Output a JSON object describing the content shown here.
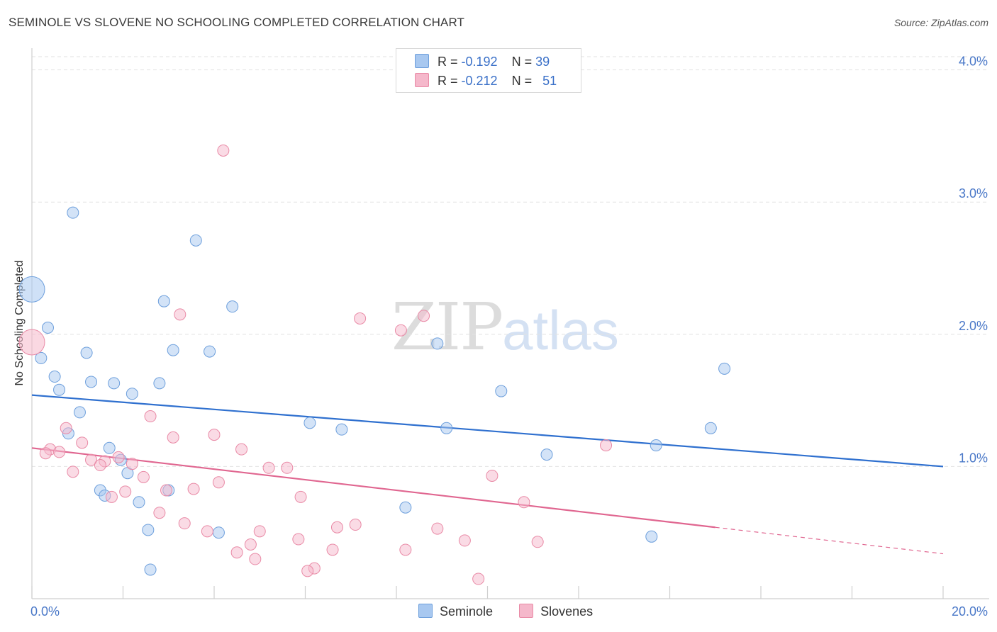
{
  "header": {
    "title": "SEMINOLE VS SLOVENE NO SCHOOLING COMPLETED CORRELATION CHART",
    "source": "Source: ZipAtlas.com"
  },
  "watermark": {
    "zip": "ZIP",
    "atlas": "atlas"
  },
  "legend": {
    "rows": [
      {
        "r_label": "R = ",
        "r_value": "-0.192",
        "n_label": "N = ",
        "n_value": "39",
        "color": "#a8c8f0"
      },
      {
        "r_label": "R = ",
        "r_value": "-0.212",
        "n_label": "N = ",
        "n_value": "51",
        "color": "#f5b8cb"
      }
    ]
  },
  "bottom_legend": [
    {
      "label": "Seminole",
      "color": "#a8c8f0"
    },
    {
      "label": "Slovenes",
      "color": "#f5b8cb"
    }
  ],
  "chart_data": {
    "type": "scatter",
    "title": "SEMINOLE VS SLOVENE NO SCHOOLING COMPLETED CORRELATION CHART",
    "xlabel": "",
    "ylabel": "No Schooling Completed",
    "xlim": [
      0,
      20
    ],
    "ylim": [
      0,
      4.1
    ],
    "x_tick_labels": [
      "0.0%",
      "20.0%"
    ],
    "y_ticks": [
      1,
      2,
      3,
      4
    ],
    "y_tick_labels": [
      "1.0%",
      "2.0%",
      "3.0%",
      "4.0%"
    ],
    "grid": true,
    "series": [
      {
        "name": "Seminole",
        "color": "#a8c8f0",
        "stroke": "#6d9fdc",
        "line_color": "#2f70cf",
        "r": -0.192,
        "n": 39,
        "trend": {
          "x0": 0,
          "y0": 1.54,
          "x1": 20,
          "y1": 1.0
        },
        "points": [
          {
            "x": 0.0,
            "y": 2.34,
            "big": true
          },
          {
            "x": 0.9,
            "y": 2.92
          },
          {
            "x": 3.6,
            "y": 2.71
          },
          {
            "x": 0.35,
            "y": 2.05
          },
          {
            "x": 2.9,
            "y": 2.25
          },
          {
            "x": 4.4,
            "y": 2.21
          },
          {
            "x": 0.2,
            "y": 1.82
          },
          {
            "x": 1.2,
            "y": 1.86
          },
          {
            "x": 3.1,
            "y": 1.88
          },
          {
            "x": 3.9,
            "y": 1.87
          },
          {
            "x": 8.9,
            "y": 1.93
          },
          {
            "x": 15.2,
            "y": 1.74
          },
          {
            "x": 0.5,
            "y": 1.68
          },
          {
            "x": 1.3,
            "y": 1.64
          },
          {
            "x": 1.8,
            "y": 1.63
          },
          {
            "x": 2.8,
            "y": 1.63
          },
          {
            "x": 0.6,
            "y": 1.58
          },
          {
            "x": 2.2,
            "y": 1.55
          },
          {
            "x": 10.3,
            "y": 1.57
          },
          {
            "x": 1.05,
            "y": 1.41
          },
          {
            "x": 6.1,
            "y": 1.33
          },
          {
            "x": 6.8,
            "y": 1.28
          },
          {
            "x": 9.1,
            "y": 1.29
          },
          {
            "x": 14.9,
            "y": 1.29
          },
          {
            "x": 0.8,
            "y": 1.25
          },
          {
            "x": 1.7,
            "y": 1.14
          },
          {
            "x": 13.7,
            "y": 1.16
          },
          {
            "x": 11.3,
            "y": 1.09
          },
          {
            "x": 1.95,
            "y": 1.05
          },
          {
            "x": 2.1,
            "y": 0.95
          },
          {
            "x": 1.5,
            "y": 0.82
          },
          {
            "x": 3.0,
            "y": 0.82
          },
          {
            "x": 1.6,
            "y": 0.78
          },
          {
            "x": 2.35,
            "y": 0.73
          },
          {
            "x": 8.2,
            "y": 0.69
          },
          {
            "x": 2.55,
            "y": 0.52
          },
          {
            "x": 4.1,
            "y": 0.5
          },
          {
            "x": 13.6,
            "y": 0.47
          },
          {
            "x": 2.6,
            "y": 0.22
          }
        ]
      },
      {
        "name": "Slovenes",
        "color": "#f5b8cb",
        "stroke": "#e98aa6",
        "line_color": "#e06690",
        "r": -0.212,
        "n": 51,
        "trend": {
          "x0": 0,
          "y0": 1.14,
          "x1": 15,
          "y1": 0.54,
          "dash_x1": 20,
          "dash_y1": 0.34
        },
        "points": [
          {
            "x": 0.0,
            "y": 1.94,
            "big": true
          },
          {
            "x": 4.2,
            "y": 3.39
          },
          {
            "x": 3.25,
            "y": 2.15
          },
          {
            "x": 7.2,
            "y": 2.12
          },
          {
            "x": 8.6,
            "y": 2.14
          },
          {
            "x": 8.1,
            "y": 2.03
          },
          {
            "x": 2.6,
            "y": 1.38
          },
          {
            "x": 0.75,
            "y": 1.29
          },
          {
            "x": 4.0,
            "y": 1.24
          },
          {
            "x": 3.1,
            "y": 1.22
          },
          {
            "x": 1.1,
            "y": 1.18
          },
          {
            "x": 12.6,
            "y": 1.16
          },
          {
            "x": 0.4,
            "y": 1.13
          },
          {
            "x": 0.3,
            "y": 1.1
          },
          {
            "x": 0.6,
            "y": 1.11
          },
          {
            "x": 4.6,
            "y": 1.13
          },
          {
            "x": 1.9,
            "y": 1.07
          },
          {
            "x": 1.3,
            "y": 1.05
          },
          {
            "x": 1.6,
            "y": 1.04
          },
          {
            "x": 1.5,
            "y": 1.01
          },
          {
            "x": 2.2,
            "y": 1.02
          },
          {
            "x": 5.2,
            "y": 0.99
          },
          {
            "x": 5.6,
            "y": 0.99
          },
          {
            "x": 0.9,
            "y": 0.96
          },
          {
            "x": 2.45,
            "y": 0.92
          },
          {
            "x": 10.1,
            "y": 0.93
          },
          {
            "x": 4.1,
            "y": 0.88
          },
          {
            "x": 3.55,
            "y": 0.83
          },
          {
            "x": 2.05,
            "y": 0.81
          },
          {
            "x": 2.95,
            "y": 0.82
          },
          {
            "x": 1.75,
            "y": 0.77
          },
          {
            "x": 5.9,
            "y": 0.77
          },
          {
            "x": 10.8,
            "y": 0.73
          },
          {
            "x": 2.8,
            "y": 0.65
          },
          {
            "x": 3.35,
            "y": 0.57
          },
          {
            "x": 7.1,
            "y": 0.56
          },
          {
            "x": 6.7,
            "y": 0.54
          },
          {
            "x": 8.9,
            "y": 0.53
          },
          {
            "x": 3.85,
            "y": 0.51
          },
          {
            "x": 5.0,
            "y": 0.51
          },
          {
            "x": 5.85,
            "y": 0.45
          },
          {
            "x": 9.5,
            "y": 0.44
          },
          {
            "x": 11.1,
            "y": 0.43
          },
          {
            "x": 4.8,
            "y": 0.41
          },
          {
            "x": 4.5,
            "y": 0.35
          },
          {
            "x": 6.6,
            "y": 0.37
          },
          {
            "x": 8.2,
            "y": 0.37
          },
          {
            "x": 4.9,
            "y": 0.3
          },
          {
            "x": 6.2,
            "y": 0.23
          },
          {
            "x": 6.05,
            "y": 0.21
          },
          {
            "x": 9.8,
            "y": 0.15
          }
        ]
      }
    ]
  }
}
